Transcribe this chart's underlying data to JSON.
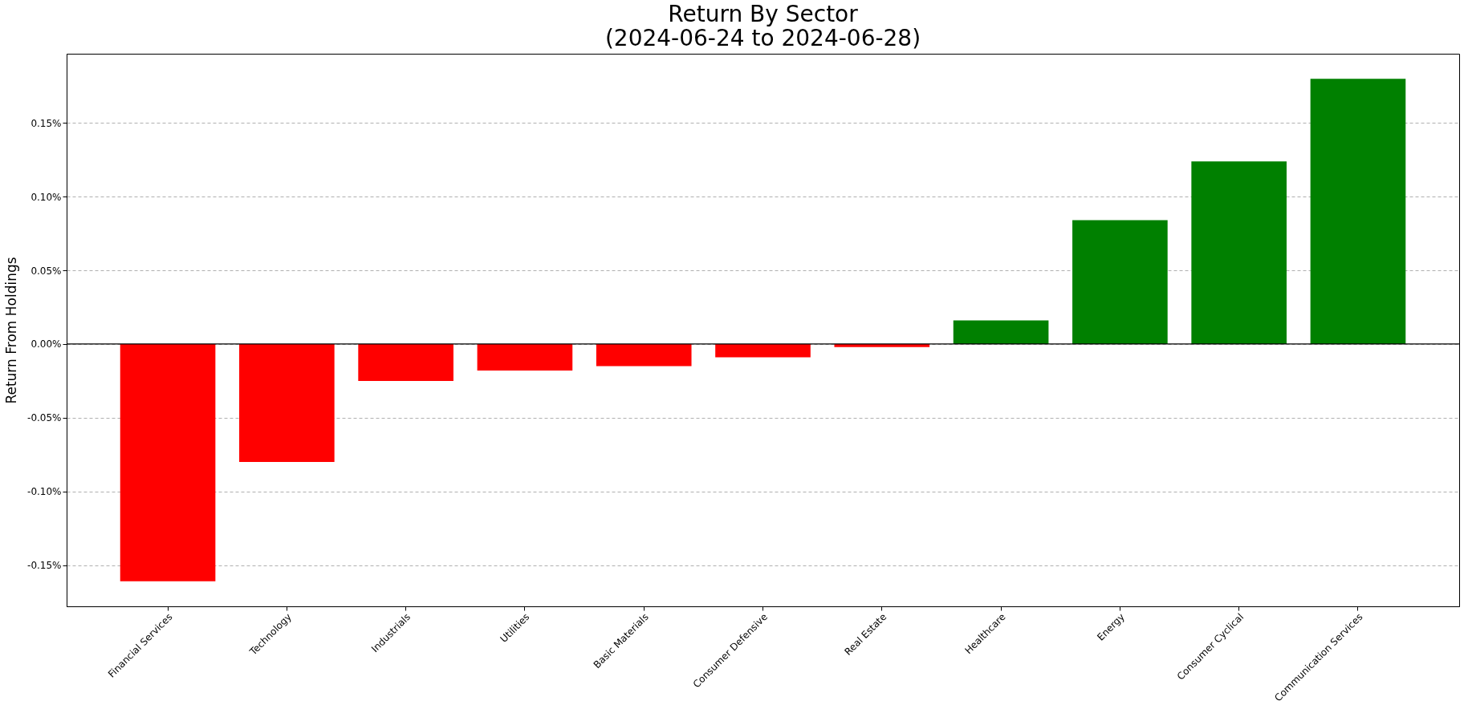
{
  "chart_data": {
    "type": "bar",
    "title": "Return By Sector",
    "subtitle": "(2024-06-24 to 2024-06-28)",
    "ylabel": "Return From Holdings",
    "categories": [
      "Financial Services",
      "Technology",
      "Industrials",
      "Utilities",
      "Basic Materials",
      "Consumer Defensive",
      "Real Estate",
      "Healthcare",
      "Energy",
      "Consumer Cyclical",
      "Communication Services"
    ],
    "values": [
      -0.161,
      -0.08,
      -0.025,
      -0.018,
      -0.015,
      -0.009,
      -0.002,
      0.016,
      0.084,
      0.124,
      0.18
    ],
    "colors": [
      "#ff0000",
      "#ff0000",
      "#ff0000",
      "#ff0000",
      "#ff0000",
      "#ff0000",
      "#ff0000",
      "#008000",
      "#008000",
      "#008000",
      "#008000"
    ],
    "ylim": [
      -0.178,
      0.197
    ],
    "yticks": [
      {
        "value": -0.15,
        "label": "-0.15%"
      },
      {
        "value": -0.1,
        "label": "-0.10%"
      },
      {
        "value": -0.05,
        "label": "-0.05%"
      },
      {
        "value": 0,
        "label": "0.00%"
      },
      {
        "value": 0.05,
        "label": "0.05%"
      },
      {
        "value": 0.1,
        "label": "0.10%"
      },
      {
        "value": 0.15,
        "label": "0.15%"
      }
    ],
    "grid": "y",
    "ref_lines": [
      {
        "axis": "y",
        "value": 0,
        "color": "#000000"
      }
    ]
  }
}
